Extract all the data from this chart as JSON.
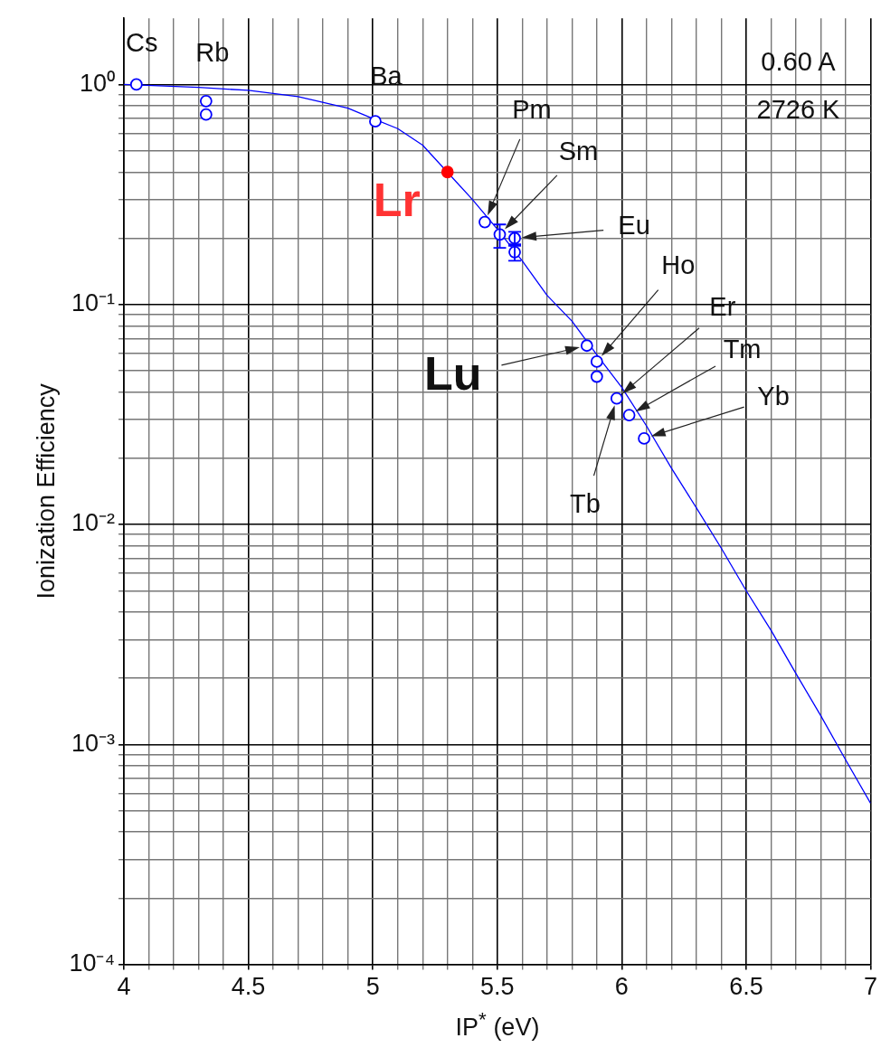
{
  "chart_data": {
    "type": "scatter",
    "xlabel": "IP$^{*}$ (eV)",
    "ylabel": "Ionization Efficiency",
    "log": "y",
    "grid": true,
    "legend": false,
    "xlim": [
      4,
      7
    ],
    "ylim": [
      0.0001,
      2
    ],
    "xticks": [
      4,
      {
        "value": 4.1,
        "label": null
      },
      {
        "value": 4.2,
        "label": null
      },
      {
        "value": 4.3,
        "label": null
      },
      {
        "value": 4.4,
        "label": null
      },
      4.5,
      {
        "value": 4.6,
        "label": null
      },
      {
        "value": 4.7,
        "label": null
      },
      {
        "value": 4.8,
        "label": null
      },
      {
        "value": 4.9,
        "label": null
      },
      5,
      {
        "value": 5.1,
        "label": null
      },
      {
        "value": 5.2,
        "label": null
      },
      {
        "value": 5.3,
        "label": null
      },
      {
        "value": 5.4,
        "label": null
      },
      5.5,
      {
        "value": 5.6,
        "label": null
      },
      {
        "value": 5.7,
        "label": null
      },
      {
        "value": 5.8,
        "label": null
      },
      {
        "value": 5.9,
        "label": null
      },
      6,
      {
        "value": 6.1,
        "label": null
      },
      {
        "value": 6.2,
        "label": null
      },
      {
        "value": 6.3,
        "label": null
      },
      {
        "value": 6.4,
        "label": null
      },
      6.5,
      {
        "value": 6.6,
        "label": null
      },
      {
        "value": 6.7,
        "label": null
      },
      {
        "value": 6.8,
        "label": null
      },
      {
        "value": 6.9,
        "label": null
      },
      7
    ],
    "yticks": [
      {
        "value": 0.0001,
        "label": "10⁻⁴"
      },
      {
        "value": 0.0002,
        "label": null
      },
      {
        "value": 0.0003,
        "label": null
      },
      {
        "value": 0.0004,
        "label": null
      },
      {
        "value": 0.0005,
        "label": null
      },
      {
        "value": 0.0006,
        "label": null
      },
      {
        "value": 0.0007,
        "label": null
      },
      {
        "value": 0.0008,
        "label": null
      },
      {
        "value": 0.0009,
        "label": null
      },
      {
        "value": 0.001,
        "label": "10⁻³"
      },
      {
        "value": 0.002,
        "label": null
      },
      {
        "value": 0.003,
        "label": null
      },
      {
        "value": 0.004,
        "label": null
      },
      {
        "value": 0.005,
        "label": null
      },
      {
        "value": 0.006,
        "label": null
      },
      {
        "value": 0.007,
        "label": null
      },
      {
        "value": 0.008,
        "label": null
      },
      {
        "value": 0.009,
        "label": null
      },
      {
        "value": 0.01,
        "label": "10⁻²"
      },
      {
        "value": 0.02,
        "label": null
      },
      {
        "value": 0.03,
        "label": null
      },
      {
        "value": 0.04,
        "label": null
      },
      {
        "value": 0.05,
        "label": null
      },
      {
        "value": 0.06,
        "label": null
      },
      {
        "value": 0.07,
        "label": null
      },
      {
        "value": 0.08,
        "label": null
      },
      {
        "value": 0.09,
        "label": null
      },
      {
        "value": 0.1,
        "label": "10⁻¹"
      },
      {
        "value": 0.2,
        "label": null
      },
      {
        "value": 0.3,
        "label": null
      },
      {
        "value": 0.4,
        "label": null
      },
      {
        "value": 0.5,
        "label": null
      },
      {
        "value": 0.6,
        "label": null
      },
      {
        "value": 0.7,
        "label": null
      },
      {
        "value": 0.8,
        "label": null
      },
      {
        "value": 0.9,
        "label": null
      },
      {
        "value": 1,
        "label": "10⁰"
      }
    ],
    "series": [
      {
        "type": "line",
        "color": "#0000ff",
        "marker": "none",
        "x": [
          4.0,
          4.3,
          4.5,
          4.7,
          4.9,
          5.0,
          5.1,
          5.2,
          5.4,
          5.5,
          5.6,
          5.7,
          5.8,
          5.9,
          6.0,
          6.1,
          6.2,
          6.3,
          6.4,
          6.5,
          6.6,
          6.7,
          6.8,
          6.9,
          7.0
        ],
        "values": [
          1.0,
          0.97,
          0.94,
          0.88,
          0.78,
          0.7,
          0.63,
          0.53,
          0.3,
          0.22,
          0.158,
          0.11,
          0.084,
          0.059,
          0.042,
          0.028,
          0.018,
          0.0119,
          0.0078,
          0.005,
          0.0033,
          0.0021,
          0.00135,
          0.00085,
          0.00054
        ]
      },
      {
        "color": "#0000ff",
        "marker": "circle",
        "x": [
          4.05,
          4.33,
          4.33,
          5.01,
          5.45,
          5.51,
          5.57,
          5.57,
          5.86,
          5.9,
          5.9,
          5.98,
          6.03,
          6.09
        ],
        "values": [
          1.0,
          0.84,
          0.73,
          0.68,
          0.237,
          0.208,
          0.2,
          0.173,
          0.065,
          0.055,
          0.047,
          0.0374,
          0.0314,
          0.0246
        ],
        "errors": [
          null,
          null,
          null,
          null,
          null,
          [
            0.181,
            0.231
          ],
          [
            0.185,
            0.214
          ],
          [
            0.158,
            0.188
          ],
          null,
          null,
          null,
          null,
          null,
          null
        ]
      },
      {
        "color": "#ff0000",
        "marker": "circle",
        "x": [
          5.3
        ],
        "values": [
          0.4
        ]
      }
    ],
    "annotations": [
      {
        "text": "Cs",
        "x": 4.05,
        "y": 1.0
      },
      {
        "text": "Rb",
        "x": 4.33,
        "y": 0.84
      },
      {
        "text": "Ba",
        "x": 5.01,
        "y": 0.68
      },
      {
        "text": "Lr",
        "x": 5.3,
        "y": 0.4
      },
      "Pm",
      "Sm",
      "Eu",
      {
        "text": "Lu",
        "x": 5.86,
        "y": 0.065
      },
      "Ho",
      "Er",
      "Tm",
      "Yb",
      "Tb",
      "0.60 A",
      "2726 K"
    ]
  }
}
